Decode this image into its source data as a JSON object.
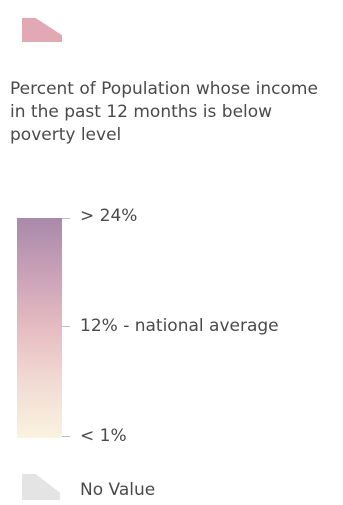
{
  "legend": {
    "title": "Percent of Population whose income in the past 12 months is below poverty level",
    "max_label": "> 24%",
    "mid_label": "12% - national average",
    "min_label": "< 1%",
    "no_value_label": "No Value",
    "colors": {
      "swatch": "#e2a9b4",
      "ramp_top": "#a88aa9",
      "ramp_mid": "#e6bcc2",
      "ramp_bottom": "#f9f3df",
      "no_value": "#e4e4e4"
    }
  }
}
